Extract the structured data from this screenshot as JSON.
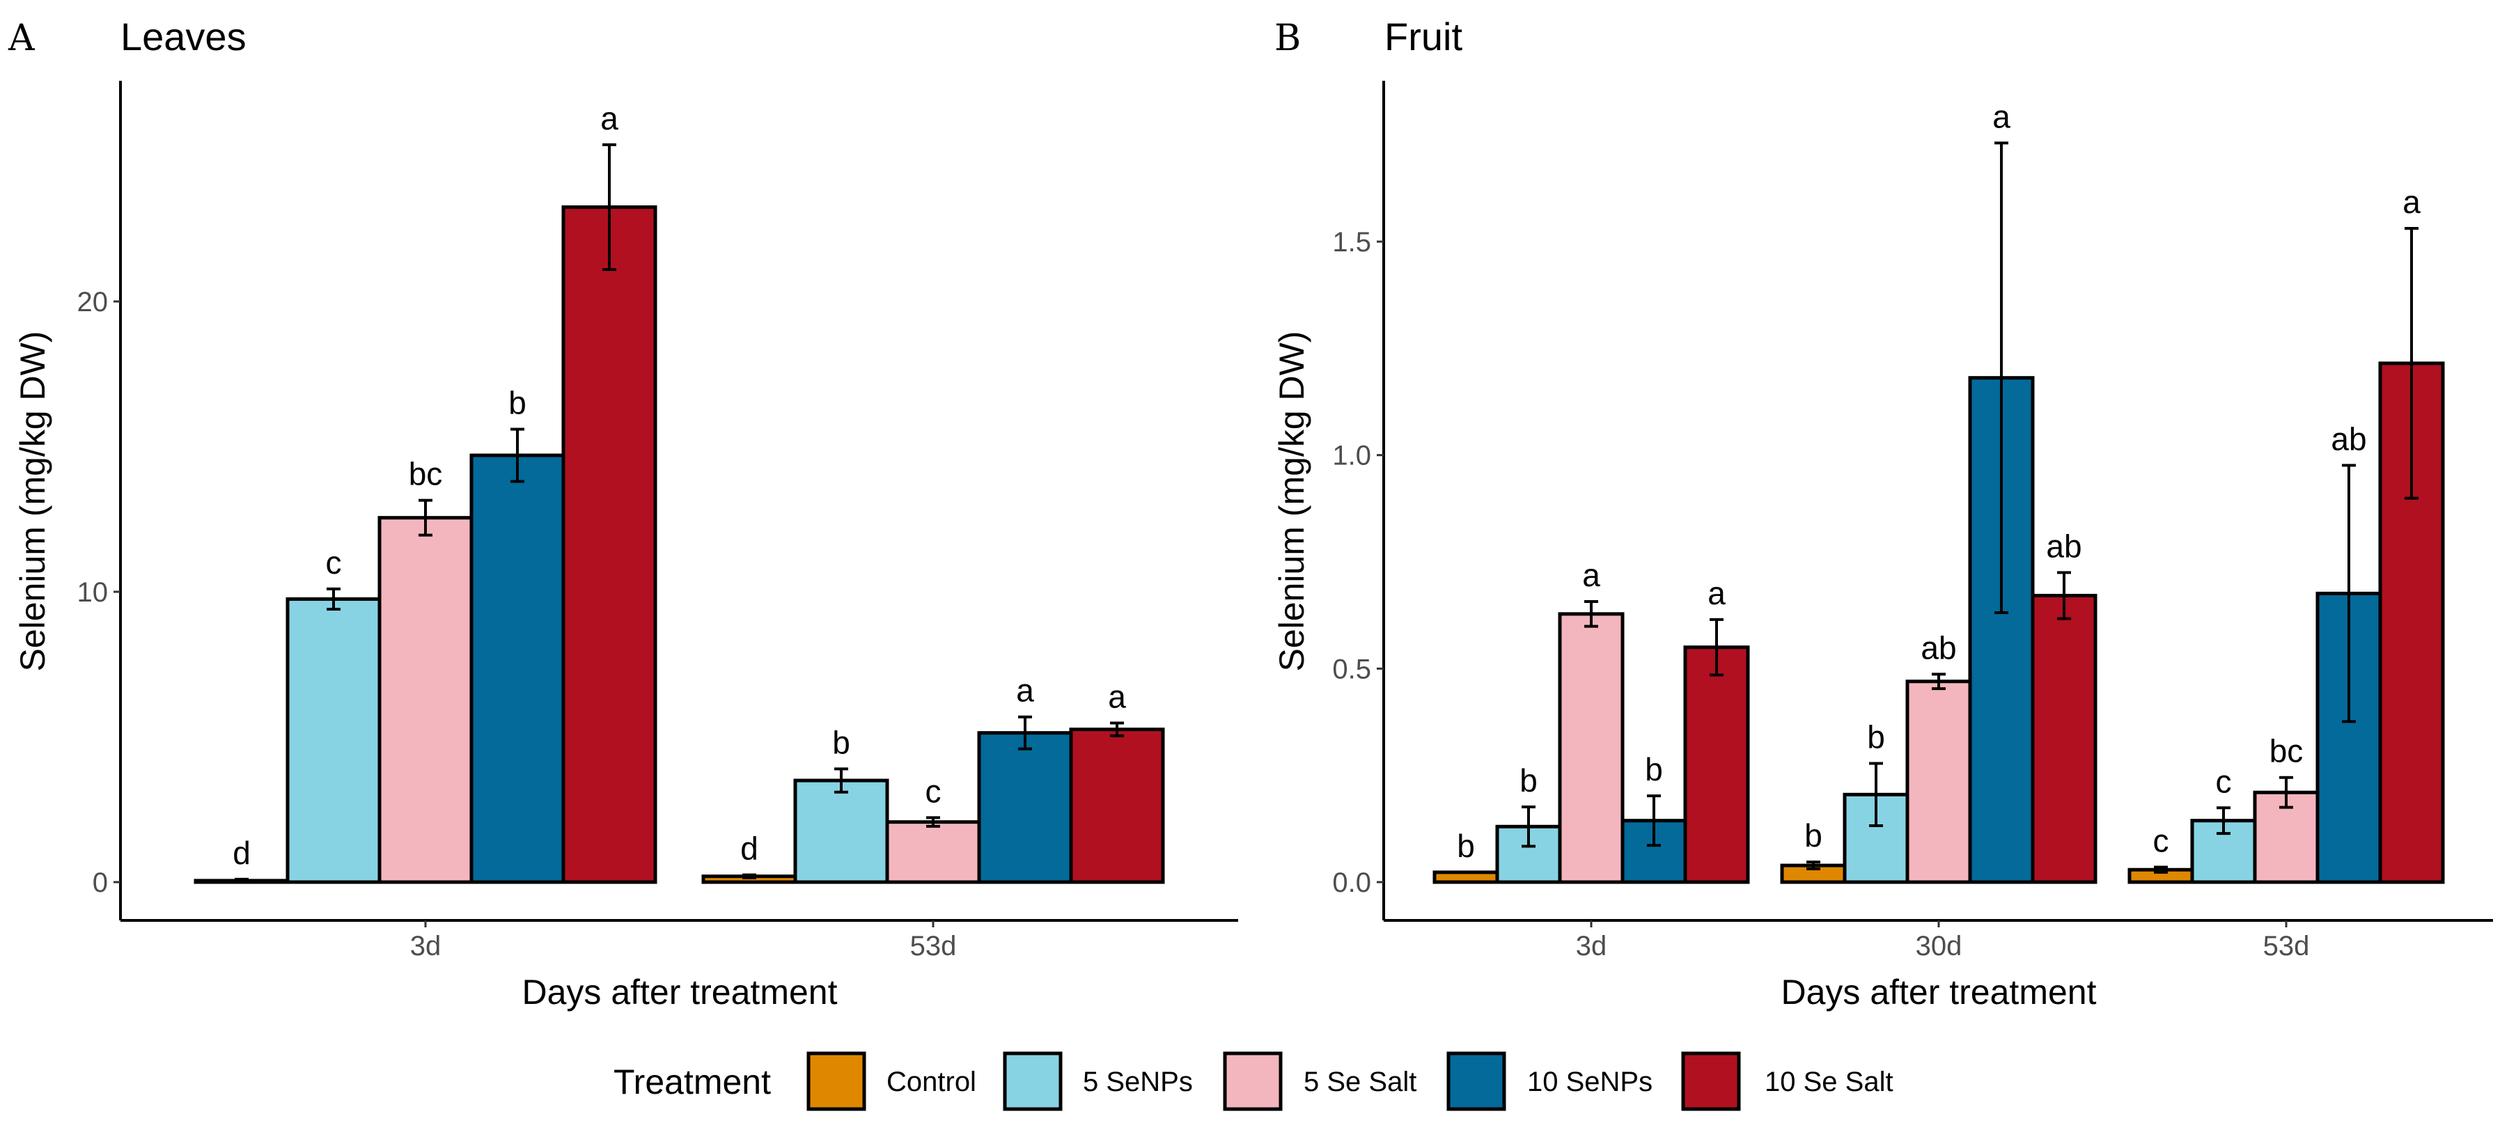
{
  "chart_data": [
    {
      "type": "bar",
      "panel_letter": "A",
      "title": "Leaves",
      "xlabel": "Days after treatment",
      "ylabel": "Selenium (mg/kg DW)",
      "ylim": [
        -1.5,
        27.5
      ],
      "yticks": [
        0,
        10,
        20
      ],
      "ytick_labels": [
        "0",
        "10",
        "20"
      ],
      "categories": [
        "3d",
        "53d"
      ],
      "grid": false,
      "series": [
        {
          "name": "Control",
          "values": [
            0.05,
            0.2
          ],
          "errors": [
            0.05,
            0.05
          ],
          "letters": [
            "d",
            "d"
          ]
        },
        {
          "name": "5 SeNPs",
          "values": [
            9.75,
            3.5
          ],
          "errors": [
            0.35,
            0.4
          ],
          "letters": [
            "c",
            "b"
          ]
        },
        {
          "name": "5 Se Salt",
          "values": [
            12.55,
            2.07
          ],
          "errors": [
            0.6,
            0.15
          ],
          "letters": [
            "bc",
            "c"
          ]
        },
        {
          "name": "10 SeNPs",
          "values": [
            14.7,
            5.14
          ],
          "errors": [
            0.9,
            0.55
          ],
          "letters": [
            "b",
            "a"
          ]
        },
        {
          "name": "10 Se Salt",
          "values": [
            23.25,
            5.26
          ],
          "errors": [
            2.15,
            0.22
          ],
          "letters": [
            "a",
            "a"
          ]
        }
      ]
    },
    {
      "type": "bar",
      "panel_letter": "B",
      "title": "Fruit",
      "xlabel": "Days after treatment",
      "ylabel": "Selenium (mg/kg DW)",
      "ylim": [
        -0.09,
        1.83
      ],
      "yticks": [
        0,
        0.5,
        1.0,
        1.5
      ],
      "ytick_labels": [
        "0.0",
        "0.5",
        "1.0",
        "1.5"
      ],
      "categories": [
        "3d",
        "30d",
        "53d"
      ],
      "grid": false,
      "series": [
        {
          "name": "Control",
          "values": [
            0.023,
            0.039,
            0.029
          ],
          "errors": [
            0.0,
            0.008,
            0.006
          ],
          "letters": [
            "b",
            "b",
            "c"
          ]
        },
        {
          "name": "5 SeNPs",
          "values": [
            0.13,
            0.205,
            0.144
          ],
          "errors": [
            0.046,
            0.073,
            0.03
          ],
          "letters": [
            "b",
            "b",
            "c"
          ]
        },
        {
          "name": "5 Se Salt",
          "values": [
            0.628,
            0.47,
            0.21
          ],
          "errors": [
            0.029,
            0.017,
            0.035
          ],
          "letters": [
            "a",
            "ab",
            "bc"
          ]
        },
        {
          "name": "10 SeNPs",
          "values": [
            0.144,
            1.181,
            0.676
          ],
          "errors": [
            0.058,
            0.55,
            0.3
          ],
          "letters": [
            "b",
            "a",
            "ab"
          ]
        },
        {
          "name": "10 Se Salt",
          "values": [
            0.55,
            0.671,
            1.215
          ],
          "errors": [
            0.065,
            0.054,
            0.316
          ],
          "letters": [
            "a",
            "ab",
            "a"
          ]
        }
      ]
    }
  ],
  "legend": {
    "title": "Treatment",
    "position": "bottom",
    "items": [
      {
        "label": "Control",
        "color": "#E08700"
      },
      {
        "label": "5 SeNPs",
        "color": "#87D3E3"
      },
      {
        "label": "5 Se Salt",
        "color": "#F4B6BE"
      },
      {
        "label": "10 SeNPs",
        "color": "#036A9A"
      },
      {
        "label": "10 Se Salt",
        "color": "#B11021"
      }
    ]
  }
}
